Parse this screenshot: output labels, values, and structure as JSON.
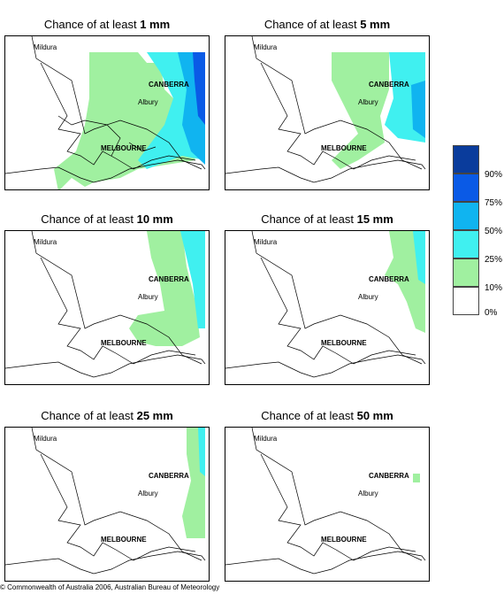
{
  "panels": [
    {
      "title_prefix": "Chance of at least ",
      "amount": "1 mm"
    },
    {
      "title_prefix": "Chance of at least ",
      "amount": "5 mm"
    },
    {
      "title_prefix": "Chance of at least ",
      "amount": "10 mm"
    },
    {
      "title_prefix": "Chance of at least ",
      "amount": "15 mm"
    },
    {
      "title_prefix": "Chance of at least ",
      "amount": "25 mm"
    },
    {
      "title_prefix": "Chance of at least ",
      "amount": "50 mm"
    }
  ],
  "places": {
    "mildura": "Mildura",
    "canberra": "CANBERRA",
    "albury": "Albury",
    "melbourne": "MELBOURNE"
  },
  "legend": {
    "labels": [
      "90%",
      "75%",
      "50%",
      "25%",
      "10%",
      "0%"
    ],
    "colors": [
      "#0a3c9c",
      "#0a5ae6",
      "#10b4f0",
      "#40f0f0",
      "#a0f0a0",
      "#ffffff"
    ]
  },
  "copyright": "© Commonwealth of Australia 2006, Australian Bureau of Meteorology"
}
